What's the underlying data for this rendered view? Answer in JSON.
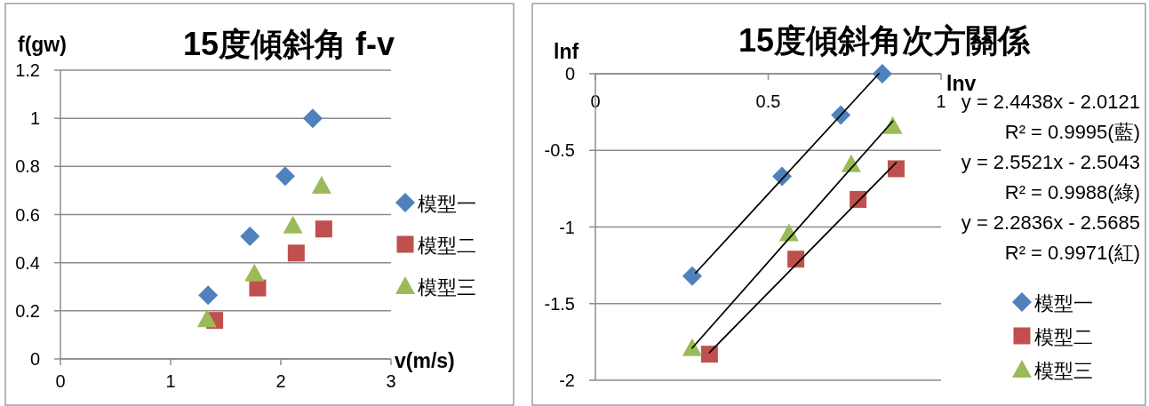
{
  "chart_data": [
    {
      "type": "scatter",
      "title": "15度傾斜角 f-v",
      "xlabel": "v(m/s)",
      "ylabel": "f(gw)",
      "xlim": [
        0,
        3
      ],
      "xticks": [
        0,
        1,
        2,
        3
      ],
      "ylim": [
        0,
        1.2
      ],
      "yticks": [
        0,
        0.2,
        0.4,
        0.6,
        0.8,
        1,
        1.2
      ],
      "grid": "y",
      "legend": "right",
      "series": [
        {
          "name": "模型一",
          "color": "#4f81bd",
          "marker": "diamond",
          "x": [
            1.34,
            1.72,
            2.04,
            2.29
          ],
          "values": [
            0.265,
            0.51,
            0.76,
            1.0
          ]
        },
        {
          "name": "模型二",
          "color": "#c0504d",
          "marker": "square",
          "x": [
            1.4,
            1.79,
            2.14,
            2.39
          ],
          "values": [
            0.16,
            0.295,
            0.44,
            0.54
          ]
        },
        {
          "name": "模型三",
          "color": "#9bbb59",
          "marker": "triangle",
          "x": [
            1.33,
            1.76,
            2.11,
            2.37
          ],
          "values": [
            0.165,
            0.355,
            0.555,
            0.72
          ]
        }
      ]
    },
    {
      "type": "scatter",
      "title": "15度傾斜角次方關係",
      "xlabel": "lnv",
      "ylabel": "lnf",
      "xlim": [
        0,
        1
      ],
      "xticks": [
        0,
        0.5,
        1
      ],
      "ylim": [
        -2,
        0
      ],
      "yticks": [
        -2,
        -1.5,
        -1,
        -0.5,
        0
      ],
      "grid": "y",
      "legend": "right",
      "annotations": [
        "y = 2.4438x - 2.0121",
        "R² = 0.9995(藍)",
        "y = 2.5521x - 2.5043",
        "R² = 0.9988(綠)",
        "y = 2.2836x - 2.5685",
        "R² = 0.9971(紅)"
      ],
      "series": [
        {
          "name": "模型一",
          "color": "#4f81bd",
          "marker": "diamond",
          "x": [
            0.28,
            0.54,
            0.71,
            0.83
          ],
          "values": [
            -1.32,
            -0.67,
            -0.27,
            0
          ]
        },
        {
          "name": "模型二",
          "color": "#c0504d",
          "marker": "square",
          "x": [
            0.33,
            0.58,
            0.76,
            0.87
          ],
          "values": [
            -1.83,
            -1.21,
            -0.82,
            -0.62
          ]
        },
        {
          "name": "模型三",
          "color": "#9bbb59",
          "marker": "triangle",
          "x": [
            0.28,
            0.56,
            0.74,
            0.86
          ],
          "values": [
            -1.79,
            -1.04,
            -0.59,
            -0.34
          ]
        },
        {
          "type": "line",
          "color": "#000000",
          "marker": "none",
          "x": [
            0.29,
            0.82
          ],
          "values": [
            -1.3,
            0
          ]
        },
        {
          "type": "line",
          "color": "#000000",
          "marker": "none",
          "x": [
            0.28,
            0.86
          ],
          "values": [
            -1.79,
            -0.31
          ]
        },
        {
          "type": "line",
          "color": "#000000",
          "marker": "none",
          "x": [
            0.33,
            0.87
          ],
          "values": [
            -1.82,
            -0.58
          ]
        }
      ]
    }
  ]
}
